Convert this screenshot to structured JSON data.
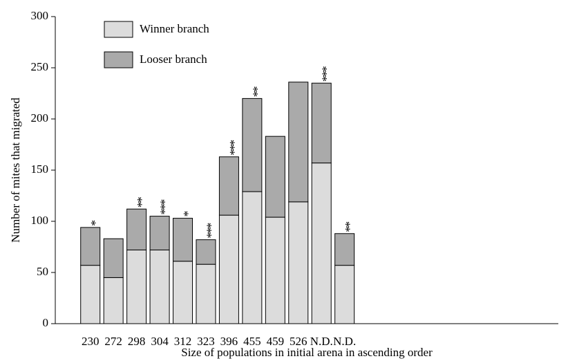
{
  "chart_data": {
    "type": "stacked_bar",
    "ylabel": "Number of mites that migrated",
    "xlabel": "Size of populations in initial arena in ascending order",
    "categories": [
      "230",
      "272",
      "298",
      "304",
      "312",
      "323",
      "396",
      "455",
      "459",
      "526",
      "N.D.",
      "N.D."
    ],
    "series": [
      {
        "name": "Winner branch",
        "color": "#dcdcdc",
        "values": [
          57,
          45,
          72,
          72,
          61,
          58,
          106,
          129,
          104,
          119,
          157,
          57
        ]
      },
      {
        "name": "Looser branch",
        "color": "#aaaaaa",
        "values": [
          37,
          38,
          40,
          33,
          42,
          24,
          57,
          91,
          79,
          117,
          78,
          31
        ]
      }
    ],
    "annotations": [
      "*",
      null,
      "**",
      "***",
      "*",
      "***",
      "***",
      "**",
      null,
      null,
      "***",
      "**"
    ],
    "ylim": [
      0,
      300
    ],
    "yticks": [
      0,
      50,
      100,
      150,
      200,
      250,
      300
    ],
    "legend": "top-left"
  }
}
